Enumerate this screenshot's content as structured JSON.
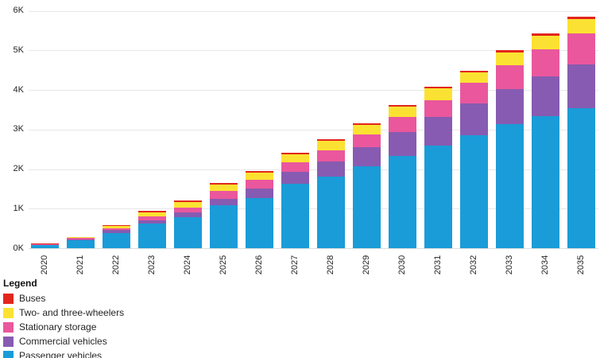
{
  "chart_data": {
    "type": "bar",
    "stacked": true,
    "title": "",
    "xlabel": "",
    "ylabel": "",
    "grid": "horizontal",
    "legend_position": "bottom-left",
    "categories": [
      "2020",
      "2021",
      "2022",
      "2023",
      "2024",
      "2025",
      "2026",
      "2027",
      "2028",
      "2029",
      "2030",
      "2031",
      "2032",
      "2033",
      "2034",
      "2035"
    ],
    "series": [
      {
        "name": "Passenger vehicles",
        "color": "#1a9cd8",
        "values": [
          80,
          200,
          390,
          630,
          790,
          1090,
          1270,
          1620,
          1810,
          2070,
          2330,
          2600,
          2860,
          3130,
          3330,
          3530
        ]
      },
      {
        "name": "Commercial vehicles",
        "color": "#875bb1",
        "values": [
          10,
          30,
          70,
          80,
          110,
          150,
          240,
          310,
          390,
          480,
          600,
          710,
          800,
          890,
          1010,
          1110
        ]
      },
      {
        "name": "Stationary storage",
        "color": "#ea579d",
        "values": [
          10,
          30,
          50,
          100,
          130,
          210,
          230,
          250,
          280,
          320,
          390,
          440,
          520,
          610,
          690,
          780
        ]
      },
      {
        "name": "Two- and three-wheelers",
        "color": "#fbe232",
        "values": [
          10,
          20,
          50,
          100,
          130,
          150,
          170,
          190,
          230,
          240,
          260,
          290,
          260,
          320,
          340,
          370
        ]
      },
      {
        "name": "Buses",
        "color": "#e2261c",
        "values": [
          10,
          10,
          30,
          30,
          50,
          40,
          50,
          40,
          50,
          40,
          40,
          50,
          50,
          50,
          60,
          60
        ]
      }
    ],
    "y_axis": {
      "min": 0,
      "max": 6000,
      "tick_step": 1000,
      "tick_labels": [
        "0K",
        "1K",
        "2K",
        "3K",
        "4K",
        "5K",
        "6K"
      ]
    }
  },
  "legend": {
    "title": "Legend",
    "items": [
      {
        "label": "Buses",
        "color": "#e2261c"
      },
      {
        "label": "Two- and three-wheelers",
        "color": "#fbe232"
      },
      {
        "label": "Stationary storage",
        "color": "#ea579d"
      },
      {
        "label": "Commercial vehicles",
        "color": "#875bb1"
      },
      {
        "label": "Passenger vehicles",
        "color": "#1a9cd8"
      }
    ]
  }
}
